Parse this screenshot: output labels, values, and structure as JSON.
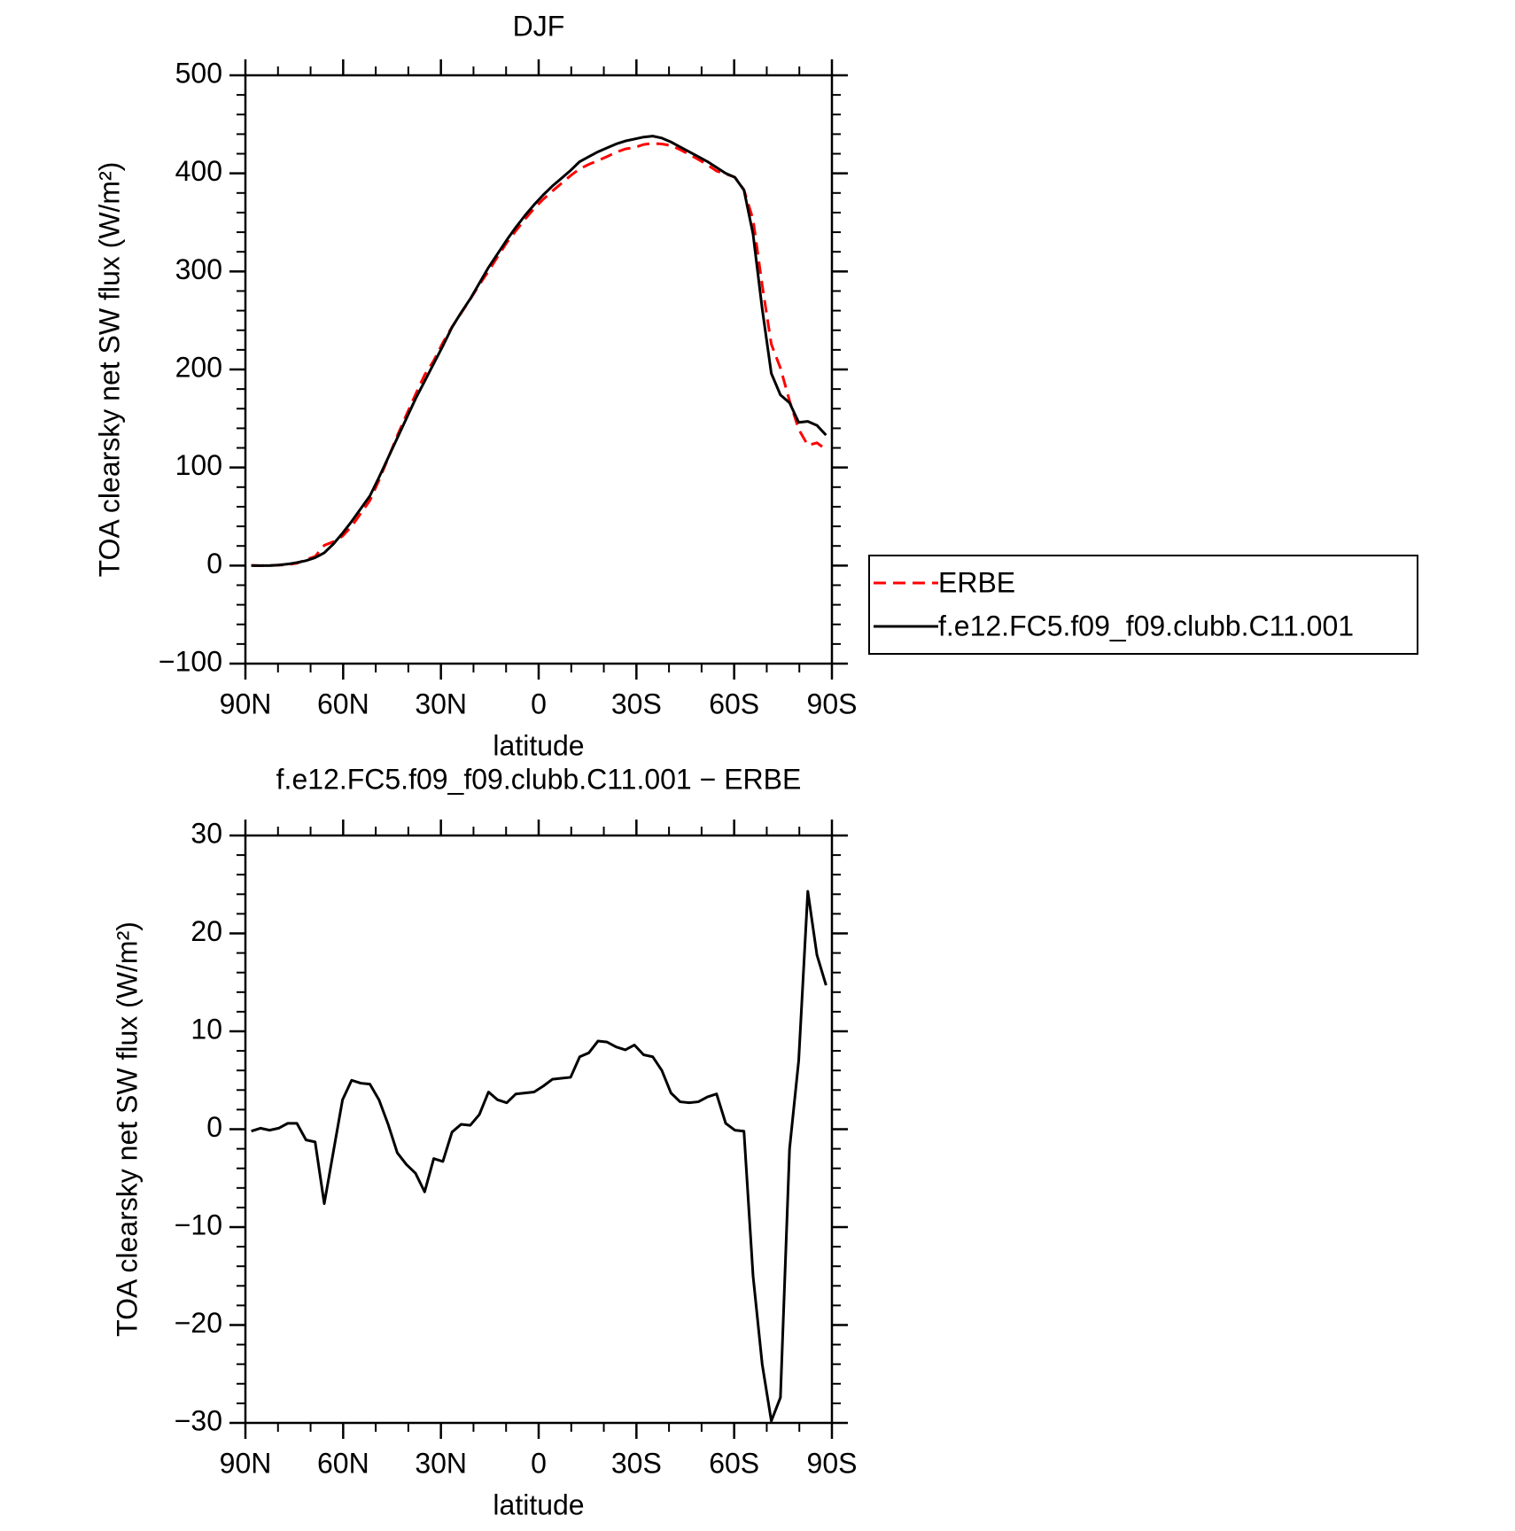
{
  "chart_data": [
    {
      "type": "line",
      "title": "DJF",
      "ylabel": "TOA clearsky net SW flux (W/m²)",
      "xlabel": "latitude",
      "x": [
        88.2,
        85.4,
        82.6,
        79.8,
        77,
        74.2,
        71.4,
        68.6,
        65.8,
        63,
        60.2,
        57.4,
        54.6,
        51.8,
        49,
        46.2,
        43.4,
        40.6,
        37.8,
        35,
        32.2,
        29.4,
        26.6,
        23.8,
        21,
        18.2,
        15.4,
        12.6,
        9.8,
        7,
        4.2,
        1.4,
        -1.4,
        -4.2,
        -7,
        -9.8,
        -12.6,
        -15.4,
        -18.2,
        -21,
        -23.8,
        -26.6,
        -29.4,
        -32.2,
        -35,
        -37.8,
        -40.6,
        -43.4,
        -46.2,
        -49,
        -51.8,
        -54.6,
        -57.4,
        -60.2,
        -63,
        -65.8,
        -68.6,
        -71.4,
        -74.2,
        -77,
        -79.8,
        -82.6,
        -85.4,
        -88.2
      ],
      "series": [
        {
          "name": "ERBE",
          "color": "#ff0000",
          "linestyle": "dashed",
          "values": [
            0.2,
            -0.1,
            0.1,
            0.4,
            0.9,
            2.4,
            6.1,
            9.3,
            20.6,
            24.3,
            30,
            40,
            53.3,
            66.4,
            87,
            109.5,
            132.4,
            153.6,
            174.5,
            194.4,
            209,
            227.3,
            243.3,
            257.5,
            271.6,
            286.5,
            300.2,
            315,
            329.3,
            341.4,
            353.3,
            364.2,
            373.6,
            381.9,
            389.8,
            397.7,
            404.6,
            409.2,
            413,
            417.1,
            421.6,
            424.9,
            426.4,
            429.4,
            430.6,
            430,
            428.3,
            424.2,
            419.3,
            414.2,
            408.7,
            402.4,
            399.4,
            396.1,
            383.2,
            353,
            286,
            225.8,
            201.4,
            168,
            139,
            122.7,
            125.2,
            118.3
          ]
        },
        {
          "name": "f.e12.FC5.f09_f09.clubb.C11.001",
          "color": "#000000",
          "linestyle": "solid",
          "values": [
            0,
            0,
            0,
            0.5,
            1.5,
            3,
            5,
            8,
            13,
            22,
            33,
            45,
            58,
            71,
            90,
            110,
            130,
            150,
            170,
            188,
            206,
            224,
            243,
            258,
            272,
            288,
            304,
            318,
            332,
            345,
            357,
            368,
            378,
            387,
            395,
            403,
            412,
            417,
            422,
            426,
            430,
            433,
            435,
            437,
            438,
            436,
            432,
            427,
            422,
            417,
            412,
            406,
            400,
            396,
            383,
            338,
            262,
            196,
            174,
            166,
            146,
            147,
            143,
            133
          ]
        }
      ],
      "xlim": [
        90,
        -90
      ],
      "xticks": [
        {
          "value": 90,
          "label": "90N"
        },
        {
          "value": 60,
          "label": "60N"
        },
        {
          "value": 30,
          "label": "30N"
        },
        0,
        {
          "value": -30,
          "label": "30S"
        },
        {
          "value": -60,
          "label": "60S"
        },
        {
          "value": -90,
          "label": "90S"
        }
      ],
      "ylim": [
        -100,
        500
      ],
      "yticks": [
        {
          "value": -100,
          "label": "−100"
        },
        0,
        100,
        200,
        300,
        400,
        500
      ],
      "legend": "right"
    },
    {
      "type": "line",
      "title": "f.e12.FC5.f09_f09.clubb.C11.001 − ERBE",
      "ylabel": "TOA clearsky net SW flux (W/m²)",
      "xlabel": "latitude",
      "x": [
        88.2,
        85.4,
        82.6,
        79.8,
        77,
        74.2,
        71.4,
        68.6,
        65.8,
        63,
        60.2,
        57.4,
        54.6,
        51.8,
        49,
        46.2,
        43.4,
        40.6,
        37.8,
        35,
        32.2,
        29.4,
        26.6,
        23.8,
        21,
        18.2,
        15.4,
        12.6,
        9.8,
        7,
        4.2,
        1.4,
        -1.4,
        -4.2,
        -7,
        -9.8,
        -12.6,
        -15.4,
        -18.2,
        -21,
        -23.8,
        -26.6,
        -29.4,
        -32.2,
        -35,
        -37.8,
        -40.6,
        -43.4,
        -46.2,
        -49,
        -51.8,
        -54.6,
        -57.4,
        -60.2,
        -63,
        -65.8,
        -68.6,
        -71.4,
        -74.2,
        -77,
        -79.8,
        -82.6,
        -85.4,
        -88.2
      ],
      "series": [
        {
          "color": "#000000",
          "linestyle": "solid",
          "values": [
            -0.2,
            0.1,
            -0.1,
            0.1,
            0.6,
            0.6,
            -1.1,
            -1.3,
            -7.6,
            -2.3,
            3,
            5,
            4.7,
            4.6,
            3,
            0.5,
            -2.4,
            -3.6,
            -4.5,
            -6.4,
            -3,
            -3.3,
            -0.3,
            0.5,
            0.4,
            1.5,
            3.8,
            3,
            2.7,
            3.6,
            3.7,
            3.8,
            4.4,
            5.1,
            5.2,
            5.3,
            7.4,
            7.8,
            9,
            8.9,
            8.4,
            8.1,
            8.6,
            7.6,
            7.4,
            6,
            3.7,
            2.8,
            2.7,
            2.8,
            3.3,
            3.6,
            0.6,
            -0.1,
            -0.2,
            -15,
            -24,
            -29.8,
            -27.4,
            -2,
            7,
            24.3,
            17.8,
            14.7
          ]
        }
      ],
      "xlim": [
        90,
        -90
      ],
      "xticks": [
        {
          "value": 90,
          "label": "90N"
        },
        {
          "value": 60,
          "label": "60N"
        },
        {
          "value": 30,
          "label": "30N"
        },
        0,
        {
          "value": -30,
          "label": "30S"
        },
        {
          "value": -60,
          "label": "60S"
        },
        {
          "value": -90,
          "label": "90S"
        }
      ],
      "ylim": [
        -30,
        30
      ],
      "yticks": [
        {
          "value": -30,
          "label": "−30"
        },
        {
          "value": -20,
          "label": "−20"
        },
        {
          "value": -10,
          "label": "−10"
        },
        0,
        10,
        20,
        30
      ]
    }
  ]
}
